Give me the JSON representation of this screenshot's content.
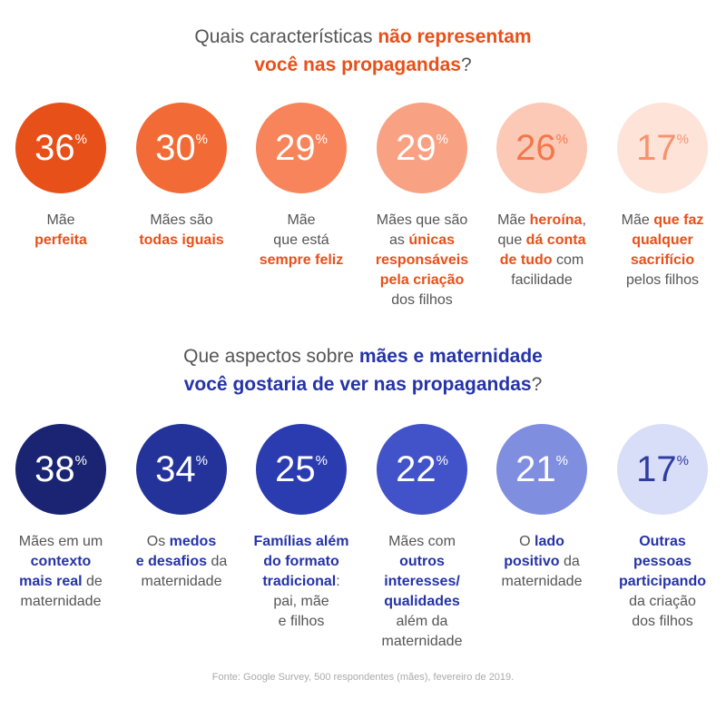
{
  "sections": [
    {
      "title": [
        [
          "Quais características ",
          {
            "b": "não representam"
          }
        ],
        [
          {
            "b": "você nas propagandas"
          },
          "?"
        ]
      ],
      "accent": "#e8501a",
      "unit": "%",
      "items": [
        {
          "value": 36,
          "color": "#e8501a",
          "text_color": "#ffffff",
          "label": [
            [
              "Mãe"
            ],
            [
              {
                "b": "perfeita"
              }
            ]
          ]
        },
        {
          "value": 30,
          "color": "#f26a35",
          "text_color": "#ffffff",
          "label": [
            [
              "Mães são"
            ],
            [
              {
                "b": "todas iguais"
              }
            ]
          ]
        },
        {
          "value": 29,
          "color": "#f7845a",
          "text_color": "#ffffff",
          "label": [
            [
              "Mãe"
            ],
            [
              "que está"
            ],
            [
              {
                "b": "sempre feliz"
              }
            ]
          ]
        },
        {
          "value": 29,
          "color": "#f9a183",
          "text_color": "#ffffff",
          "label": [
            [
              "Mães que são"
            ],
            [
              "as ",
              {
                "b": "únicas"
              }
            ],
            [
              {
                "b": "responsáveis"
              }
            ],
            [
              {
                "b": "pela criação"
              }
            ],
            [
              "dos filhos"
            ]
          ]
        },
        {
          "value": 26,
          "color": "#fcc9b6",
          "text_color": "#f0784c",
          "label": [
            [
              "Mãe ",
              {
                "b": "heroína"
              },
              ","
            ],
            [
              "que ",
              {
                "b": "dá conta"
              }
            ],
            [
              {
                "b": "de tudo"
              },
              " com"
            ],
            [
              "facilidade"
            ]
          ]
        },
        {
          "value": 17,
          "color": "#fde3d8",
          "text_color": "#f5946f",
          "label": [
            [
              "Mãe ",
              {
                "b": "que faz"
              }
            ],
            [
              {
                "b": "qualquer"
              }
            ],
            [
              {
                "b": "sacrifício"
              }
            ],
            [
              "pelos filhos"
            ]
          ]
        }
      ]
    },
    {
      "title": [
        [
          "Que aspectos sobre ",
          {
            "b": "mães e maternidade"
          }
        ],
        [
          {
            "b": "você gostaria de ver nas propagandas"
          },
          "?"
        ]
      ],
      "accent": "#2533a8",
      "unit": "%",
      "items": [
        {
          "value": 38,
          "color": "#1a2472",
          "text_color": "#ffffff",
          "label": [
            [
              "Mães em um"
            ],
            [
              {
                "b": "contexto"
              }
            ],
            [
              {
                "b": "mais real"
              },
              " de"
            ],
            [
              "maternidade"
            ]
          ]
        },
        {
          "value": 34,
          "color": "#23339a",
          "text_color": "#ffffff",
          "label": [
            [
              "Os ",
              {
                "b": "medos"
              }
            ],
            [
              {
                "b": "e desafios"
              },
              " da"
            ],
            [
              "maternidade"
            ]
          ]
        },
        {
          "value": 25,
          "color": "#2b3cb0",
          "text_color": "#ffffff",
          "label": [
            [
              {
                "b": "Famílias além"
              }
            ],
            [
              {
                "b": "do formato"
              }
            ],
            [
              {
                "b": "tradicional"
              },
              ":"
            ],
            [
              "pai, mãe"
            ],
            [
              "e filhos"
            ]
          ]
        },
        {
          "value": 22,
          "color": "#4253c9",
          "text_color": "#ffffff",
          "label": [
            [
              "Mães com"
            ],
            [
              {
                "b": "outros"
              }
            ],
            [
              {
                "b": "interesses/"
              }
            ],
            [
              {
                "b": "qualidades"
              }
            ],
            [
              "além da"
            ],
            [
              "maternidade"
            ]
          ]
        },
        {
          "value": 21,
          "color": "#808ee0",
          "text_color": "#ffffff",
          "label": [
            [
              "O ",
              {
                "b": "lado"
              }
            ],
            [
              {
                "b": "positivo"
              },
              " da"
            ],
            [
              "maternidade"
            ]
          ]
        },
        {
          "value": 17,
          "color": "#d8def8",
          "text_color": "#2f3d9e",
          "label": [
            [
              {
                "b": "Outras"
              }
            ],
            [
              {
                "b": "pessoas"
              }
            ],
            [
              {
                "b": "participando"
              }
            ],
            [
              "da criação"
            ],
            [
              "dos filhos"
            ]
          ]
        }
      ]
    }
  ],
  "footnote": "Fonte: Google Survey, 500 respondentes (mães), fevereiro de 2019."
}
